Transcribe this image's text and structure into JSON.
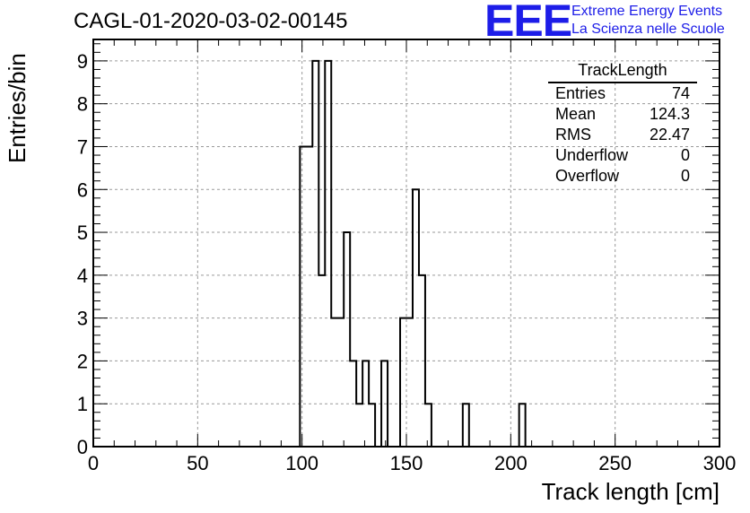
{
  "header": {
    "title": "CAGL-01-2020-03-02-00145",
    "logo_letters": "EEE",
    "logo_line1": "Extreme Energy Events",
    "logo_line2": "La Scienza nelle Scuole",
    "logo_color": "#1d1de8"
  },
  "stats": {
    "title": "TrackLength",
    "rows": [
      {
        "label": "Entries",
        "value": "74"
      },
      {
        "label": "Mean",
        "value": "124.3"
      },
      {
        "label": "RMS",
        "value": "22.47"
      },
      {
        "label": "Underflow",
        "value": "0"
      },
      {
        "label": "Overflow",
        "value": "0"
      }
    ]
  },
  "chart_data": {
    "type": "bar",
    "title": "CAGL-01-2020-03-02-00145",
    "xlabel": "Track length [cm]",
    "ylabel": "Entries/bin",
    "xlim": [
      0,
      300
    ],
    "ylim": [
      0,
      9.5
    ],
    "grid": true,
    "bin_width": 3,
    "x_ticks": [
      0,
      50,
      100,
      150,
      200,
      250,
      300
    ],
    "y_ticks": [
      0,
      1,
      2,
      3,
      4,
      5,
      6,
      7,
      8,
      9
    ],
    "bins": [
      {
        "x": 99,
        "y": 7
      },
      {
        "x": 102,
        "y": 7
      },
      {
        "x": 105,
        "y": 9
      },
      {
        "x": 108,
        "y": 4
      },
      {
        "x": 111,
        "y": 9
      },
      {
        "x": 114,
        "y": 3
      },
      {
        "x": 117,
        "y": 3
      },
      {
        "x": 120,
        "y": 5
      },
      {
        "x": 123,
        "y": 2
      },
      {
        "x": 126,
        "y": 1
      },
      {
        "x": 129,
        "y": 2
      },
      {
        "x": 132,
        "y": 1
      },
      {
        "x": 138,
        "y": 2
      },
      {
        "x": 147,
        "y": 3
      },
      {
        "x": 150,
        "y": 3
      },
      {
        "x": 153,
        "y": 6
      },
      {
        "x": 156,
        "y": 4
      },
      {
        "x": 159,
        "y": 1
      },
      {
        "x": 177,
        "y": 1
      },
      {
        "x": 204,
        "y": 1
      }
    ]
  }
}
